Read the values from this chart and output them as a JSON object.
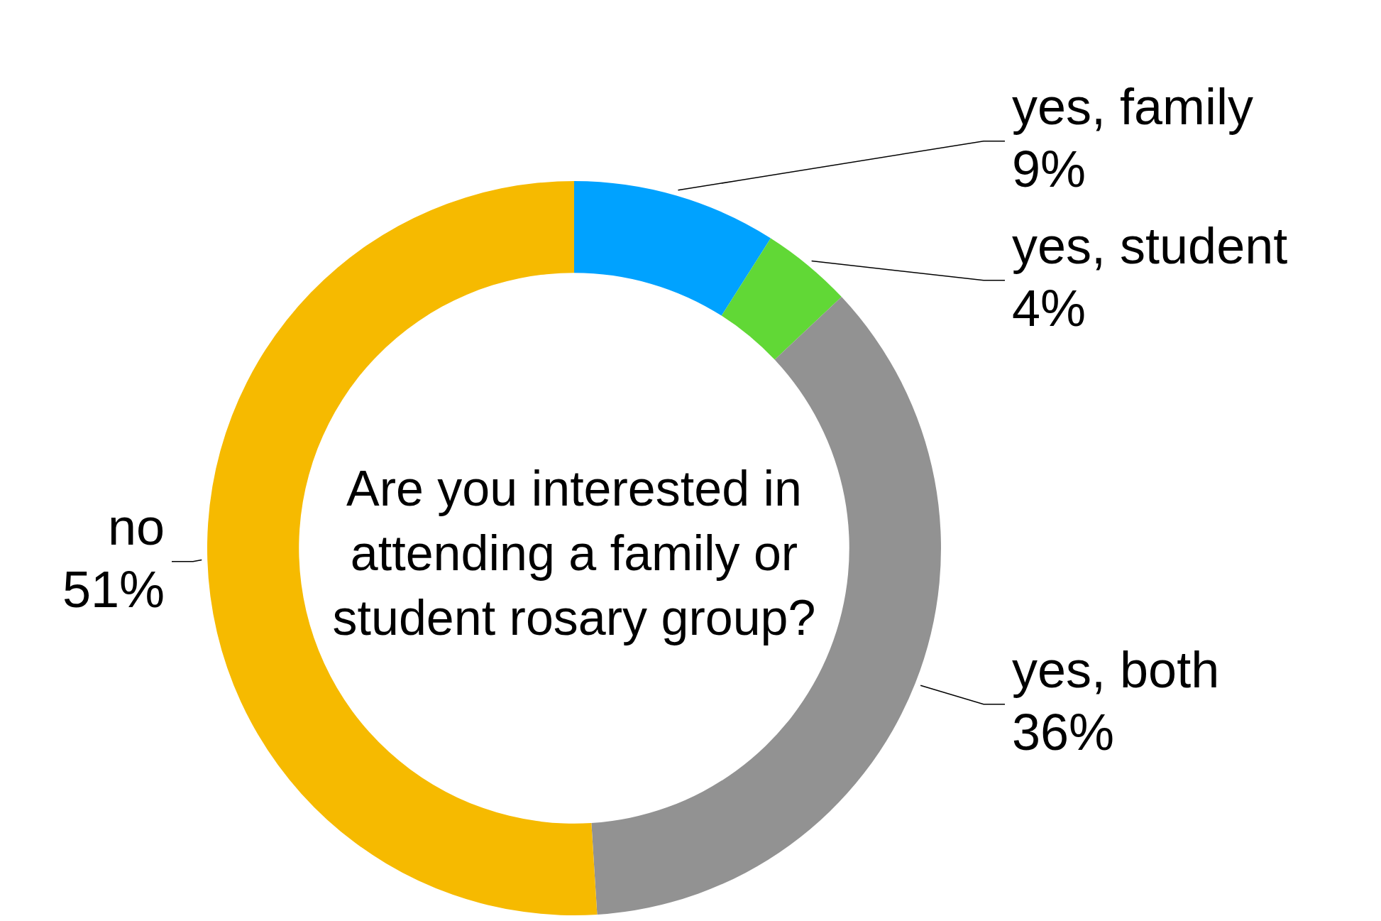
{
  "chart_data": {
    "type": "donut",
    "title": "Are you interested in attending a family or student rosary group?",
    "categories": [
      "yes, family",
      "yes, student",
      "yes, both",
      "no"
    ],
    "values": [
      9,
      4,
      36,
      51
    ],
    "value_labels": [
      "9%",
      "4%",
      "36%",
      "51%"
    ],
    "colors": [
      "#00a2ff",
      "#61d836",
      "#929292",
      "#f6ba00"
    ],
    "legend": false
  }
}
